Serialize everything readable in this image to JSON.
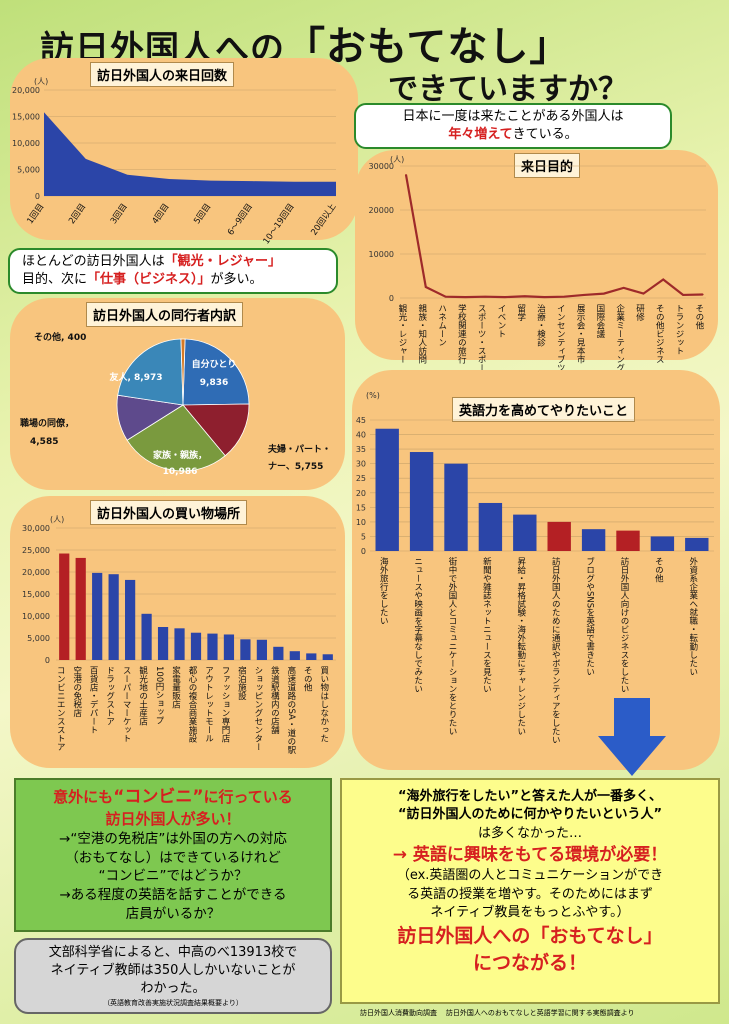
{
  "header": {
    "title_part1": "訪日外国人への",
    "title_part2": "「おもてなし」",
    "title_part3": "できていますか？"
  },
  "bubble_visits": {
    "line1": "日本に一度は来たことがある外国人は",
    "line2_red": "年々増えて",
    "line2_rest": "きている。"
  },
  "bubble_purpose": {
    "l1a": "ほとんどの訪日外国人は",
    "l1b": "「観光・レジャー」",
    "l2a": "目的、次に",
    "l2b": "「仕事（ビジネス）」",
    "l2c": "が多い。"
  },
  "colors": {
    "blue": "#2b45a8",
    "red": "#b42024",
    "line": "#9e2a2a",
    "green_box": "#7ec850"
  },
  "chart_data": [
    {
      "type": "area",
      "title": "訪日外国人の来日回数",
      "unit": "(人)",
      "categories": [
        "1回目",
        "2回目",
        "3回目",
        "4回目",
        "5回目",
        "6～9回目",
        "10～19回目",
        "20回以上"
      ],
      "values": [
        15800,
        7000,
        4000,
        3200,
        2900,
        2800,
        2700,
        2700
      ],
      "ylim": [
        0,
        20000
      ],
      "yticks": [
        "0",
        "5,000",
        "10,000",
        "15,000",
        "20,000"
      ]
    },
    {
      "type": "line",
      "title": "来日目的",
      "unit": "(人)",
      "categories": [
        "観光・レジャー",
        "親族・知人訪問",
        "ハネムーン",
        "学校関連の旅行",
        "スポーツ・スポーツ観戦",
        "イベント",
        "留学",
        "治療・検診",
        "インセンティブツアー",
        "展示会・見本市",
        "国際会議",
        "企業ミーティング",
        "研修",
        "その他ビジネス",
        "トランジット",
        "その他"
      ],
      "values": [
        28000,
        2500,
        300,
        200,
        300,
        200,
        400,
        200,
        300,
        700,
        1000,
        2300,
        1000,
        4200,
        700,
        800
      ],
      "ylim": [
        0,
        30000
      ],
      "yticks": [
        "0",
        "10000",
        "20000",
        "30000"
      ]
    },
    {
      "type": "pie",
      "title": "訪日外国人の同行者内訳",
      "slices": [
        {
          "label": "自分ひとり",
          "value": 9836,
          "value_text": "9,836",
          "color": "#2f6cb5"
        },
        {
          "label": "夫婦・パートナー",
          "value": 5755,
          "value_text": "5,755",
          "color": "#8e1f2e"
        },
        {
          "label": "家族・親族",
          "value": 10986,
          "value_text": "10,986",
          "color": "#7a9a3e"
        },
        {
          "label": "職場の同僚",
          "value": 4585,
          "value_text": "4,585",
          "color": "#5e4a8c"
        },
        {
          "label": "友人",
          "value": 8973,
          "value_text": "8,973",
          "color": "#3a87b8"
        },
        {
          "label": "その他",
          "value": 400,
          "value_text": "400",
          "color": "#d67a26"
        }
      ]
    },
    {
      "type": "bar",
      "title": "訪日外国人の買い物場所",
      "unit": "(人)",
      "categories": [
        "コンビニエンスストア",
        "空港の免税店",
        "百貨店・デパート",
        "ドラッグストア",
        "スーパーマーケット",
        "観光地の土産店",
        "100円ショップ",
        "家電量販店",
        "都心の複合商業施設",
        "アウトレットモール",
        "ファッション専門店",
        "宿泊施設",
        "ショッピングセンター",
        "鉄道駅構内の店舗",
        "高速道路のSA・道の駅",
        "その他",
        "買い物はしなかった"
      ],
      "values": [
        24200,
        23200,
        19800,
        19500,
        18200,
        10500,
        7500,
        7200,
        6200,
        6000,
        5800,
        4700,
        4600,
        3000,
        2000,
        1500,
        1300
      ],
      "highlight": [
        0,
        1
      ],
      "ylim": [
        0,
        30000
      ],
      "yticks": [
        "0",
        "5,000",
        "10,000",
        "15,000",
        "20,000",
        "25,000",
        "30,000"
      ]
    },
    {
      "type": "bar",
      "title": "英語力を高めてやりたいこと",
      "unit": "(%)",
      "categories": [
        "海外旅行をしたい",
        "ニュースや映画を字幕なしでみたい",
        "街中で外国人とコミュニケーションをとりたい",
        "新聞や雑誌ネットニュースを見たい",
        "昇給・昇格試験・海外転勤にチャレンジしたい",
        "訪日外国人のために通訳やボランティアをしたい",
        "ブログやSNSを英語で書きたい",
        "訪日外国人向けのビジネスをしたい",
        "その他",
        "外資系企業へ就職・転勤したい"
      ],
      "values": [
        42,
        34,
        30,
        16.5,
        12.5,
        10,
        7.5,
        7,
        5,
        4.5
      ],
      "highlight": [
        5,
        7
      ],
      "ylim": [
        0,
        45
      ],
      "yticks": [
        "0",
        "5",
        "10",
        "15",
        "20",
        "25",
        "30",
        "35",
        "40",
        "45"
      ]
    }
  ],
  "green_box": {
    "l1a": "意外にも",
    "l1b": "“コンビニ”",
    "l1c": "に行っている",
    "l2": "訪日外国人が多い！",
    "l3": "→“空港の免税店”は外国の方への対応",
    "l4": "（おもてなし）はできているけれど",
    "l5": "“コンビニ”ではどうか？",
    "l6": "→ある程度の英語を話すことができる",
    "l7": "店員がいるか？"
  },
  "gray_box": {
    "l1": "文部科学省によると、中高のべ13913校で",
    "l2": "ネイティブ教師は350人しかいないことが",
    "l3": "わかった。",
    "source": "（英語教育改善実施状況調査結果概要より）"
  },
  "yellow_box": {
    "l1": "“海外旅行をしたい”と答えた人が一番多く、",
    "l2": "“訪日外国人のために何かやりたいという人”",
    "l3": "は多くなかった…",
    "l4": "→ 英語に興味をもてる環境が必要！",
    "l5": "（ex.英語圏の人とコミュニケーションができ",
    "l6": "る英語の授業を増やす。そのためにはまず",
    "l7": "ネイティブ教員をもっとふやす。）",
    "l8": "訪日外国人への「おもてなし」",
    "l9": "につながる！"
  },
  "footer": {
    "source1": "訪日外国人消費動向調査",
    "source2": "訪日外国人へのおもてなしと英語学習に関する実態調査より"
  }
}
